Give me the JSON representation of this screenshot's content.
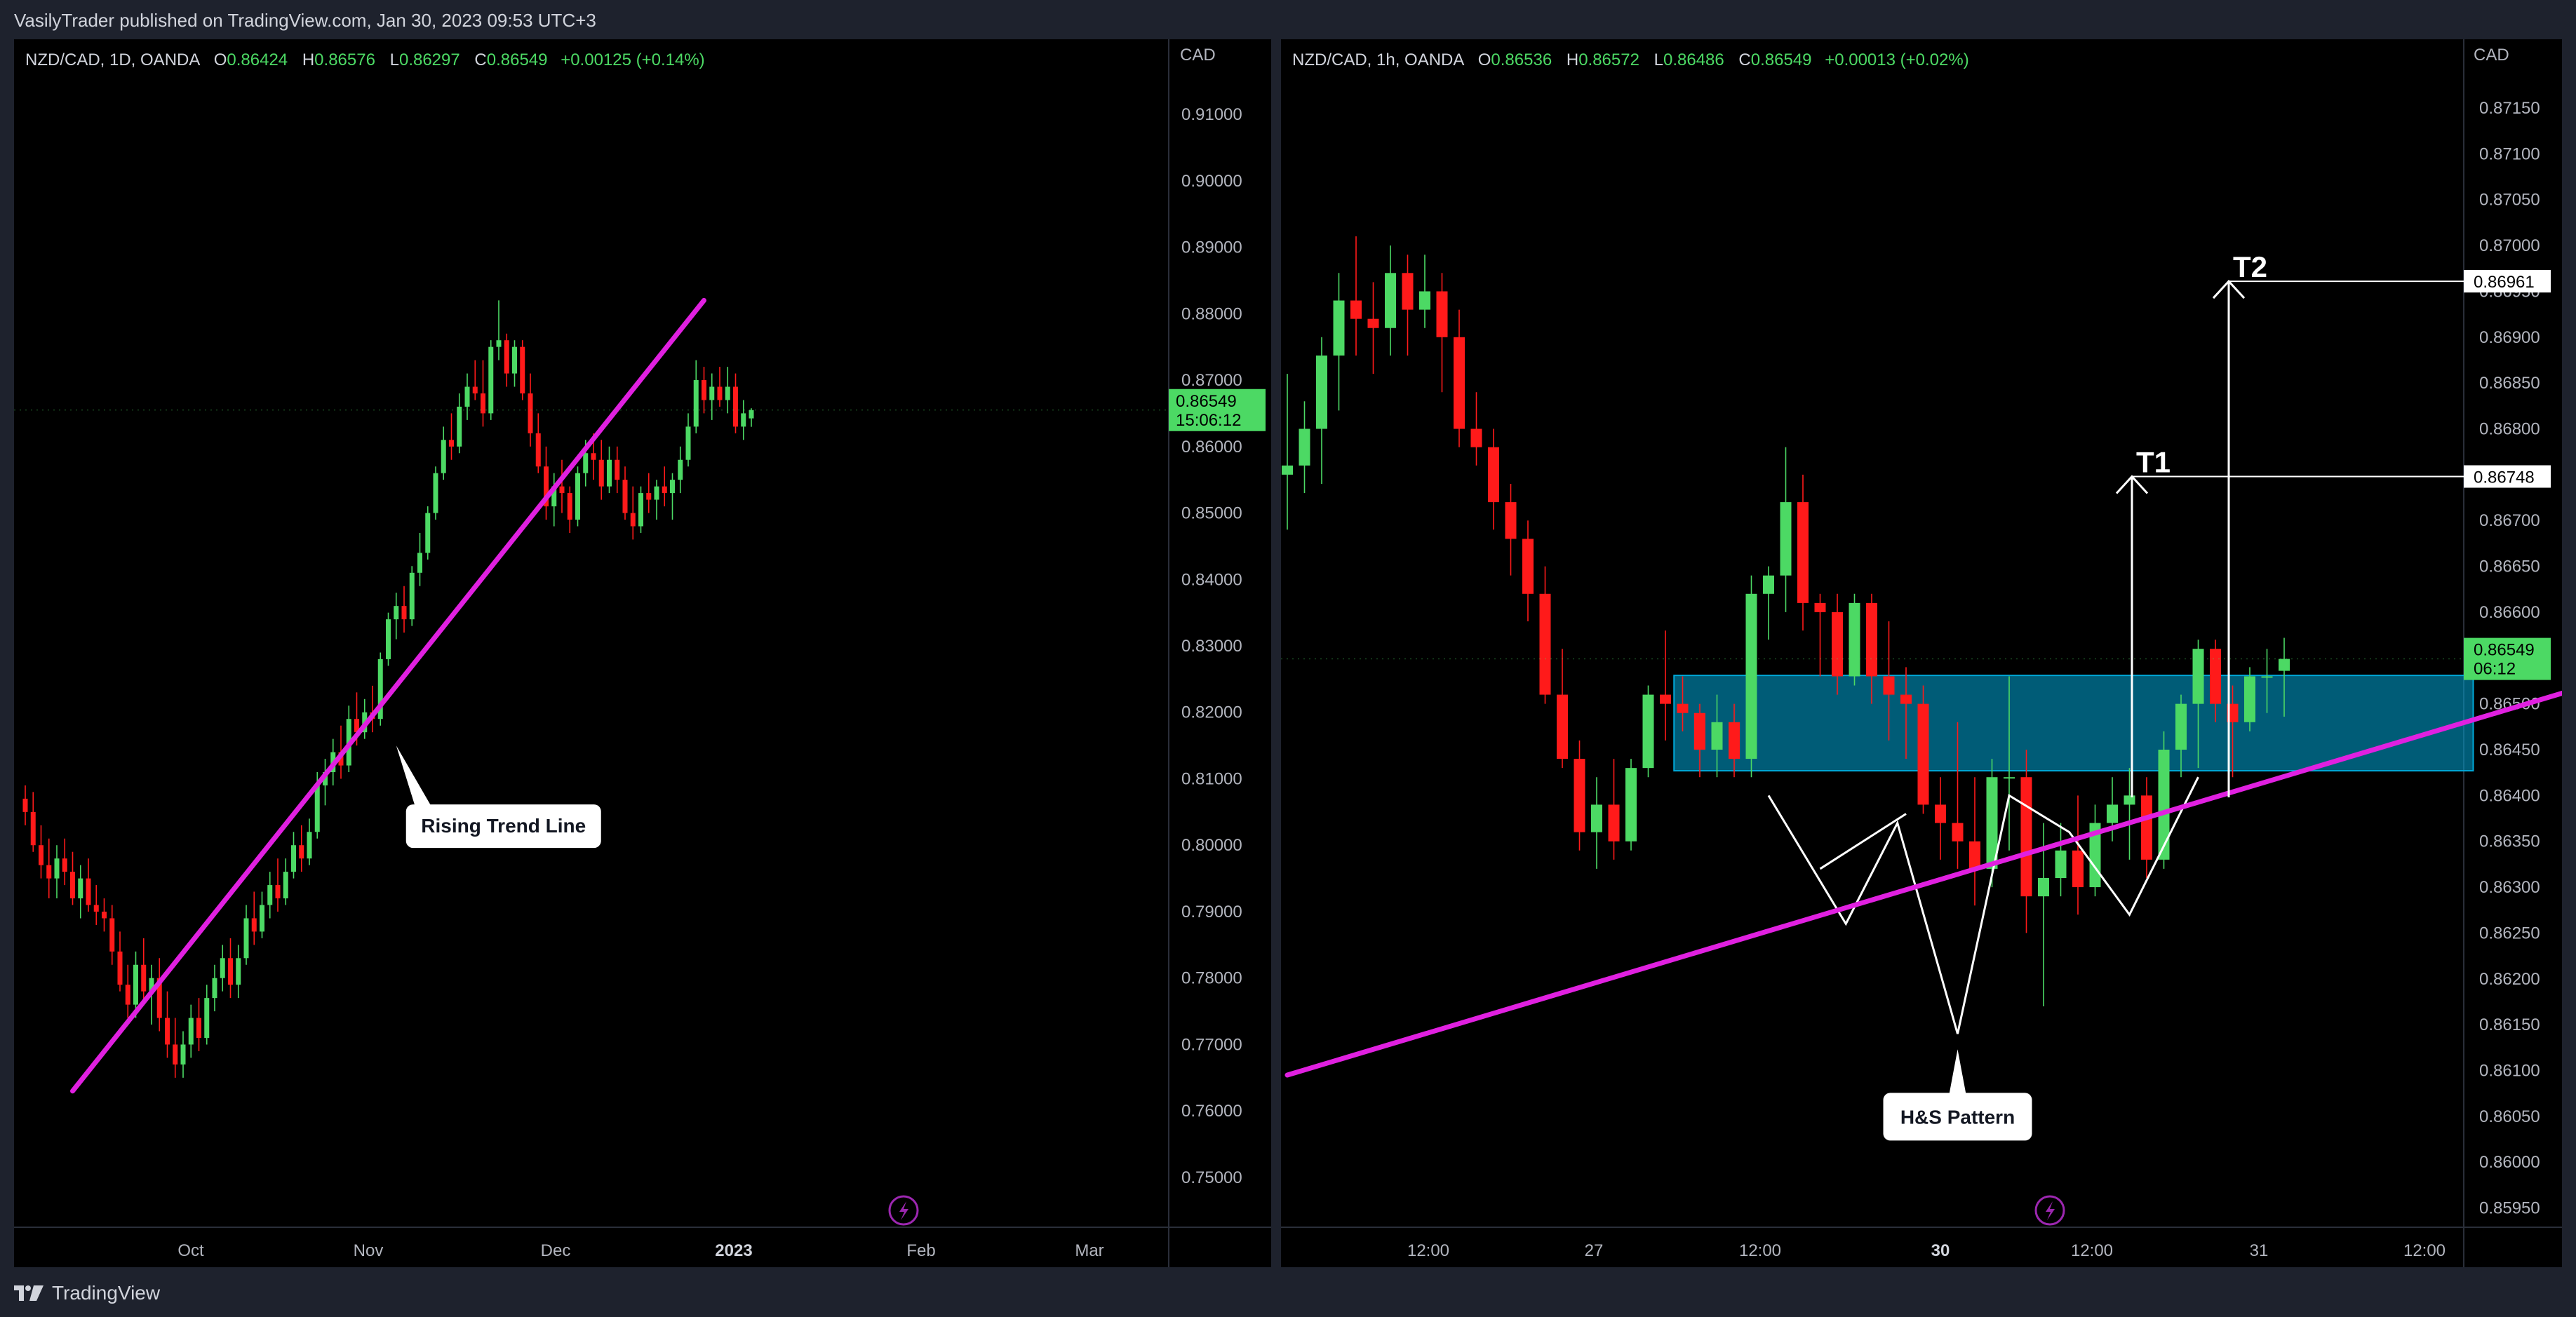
{
  "header": {
    "publisher_line": "VasilyTrader published on TradingView.com, Jan 30, 2023 09:53 UTC+3"
  },
  "footer": {
    "brand": "TradingView"
  },
  "colors": {
    "up": "#4cd964",
    "down": "#ff1a1a",
    "trendline": "#e020e0",
    "zone": "#00a8d8",
    "price_tag": "#4cd964",
    "axis_text": "#b2b5be"
  },
  "chart_data": [
    {
      "type": "candlestick",
      "title": "NZD/CAD, 1D, OANDA",
      "ohlc": {
        "o_label": "O",
        "o": "0.86424",
        "h_label": "H",
        "h": "0.86576",
        "l_label": "L",
        "l": "0.86297",
        "c_label": "C",
        "c": "0.86549",
        "change": "+0.00125 (+0.14%)"
      },
      "currency": "CAD",
      "ylim": [
        0.7425,
        0.9213
      ],
      "y_ticks": [
        "0.91000",
        "0.90000",
        "0.89000",
        "0.88000",
        "0.87000",
        "0.86000",
        "0.85000",
        "0.84000",
        "0.83000",
        "0.82000",
        "0.81000",
        "0.80000",
        "0.79000",
        "0.78000",
        "0.77000",
        "0.76000",
        "0.75000"
      ],
      "x_ticks": [
        "Oct",
        "Nov",
        "Dec",
        "2023",
        "Feb",
        "Mar"
      ],
      "last_price": "0.86549",
      "countdown": "15:06:12",
      "trendline": {
        "from": [
          6,
          0.763
        ],
        "to": [
          86,
          0.882
        ]
      },
      "annotations": [
        {
          "text": "Rising Trend Line",
          "anchor": [
            47,
            0.815
          ]
        }
      ],
      "candles": [
        [
          0.807,
          0.809,
          0.803,
          0.805
        ],
        [
          0.805,
          0.808,
          0.799,
          0.8
        ],
        [
          0.8,
          0.803,
          0.795,
          0.797
        ],
        [
          0.797,
          0.801,
          0.792,
          0.795
        ],
        [
          0.795,
          0.8,
          0.792,
          0.798
        ],
        [
          0.798,
          0.801,
          0.794,
          0.796
        ],
        [
          0.796,
          0.799,
          0.791,
          0.792
        ],
        [
          0.792,
          0.797,
          0.789,
          0.795
        ],
        [
          0.795,
          0.798,
          0.79,
          0.791
        ],
        [
          0.791,
          0.794,
          0.788,
          0.79
        ],
        [
          0.79,
          0.792,
          0.787,
          0.789
        ],
        [
          0.789,
          0.791,
          0.782,
          0.784
        ],
        [
          0.784,
          0.787,
          0.778,
          0.779
        ],
        [
          0.779,
          0.782,
          0.774,
          0.776
        ],
        [
          0.776,
          0.784,
          0.774,
          0.782
        ],
        [
          0.782,
          0.786,
          0.776,
          0.778
        ],
        [
          0.778,
          0.782,
          0.773,
          0.78
        ],
        [
          0.78,
          0.783,
          0.772,
          0.774
        ],
        [
          0.774,
          0.778,
          0.768,
          0.77
        ],
        [
          0.77,
          0.774,
          0.765,
          0.767
        ],
        [
          0.767,
          0.772,
          0.765,
          0.77
        ],
        [
          0.77,
          0.776,
          0.768,
          0.774
        ],
        [
          0.774,
          0.777,
          0.769,
          0.771
        ],
        [
          0.771,
          0.779,
          0.77,
          0.777
        ],
        [
          0.777,
          0.782,
          0.775,
          0.78
        ],
        [
          0.78,
          0.785,
          0.778,
          0.783
        ],
        [
          0.783,
          0.786,
          0.777,
          0.779
        ],
        [
          0.779,
          0.785,
          0.777,
          0.783
        ],
        [
          0.783,
          0.791,
          0.782,
          0.789
        ],
        [
          0.789,
          0.793,
          0.785,
          0.787
        ],
        [
          0.787,
          0.793,
          0.786,
          0.791
        ],
        [
          0.791,
          0.796,
          0.789,
          0.794
        ],
        [
          0.794,
          0.798,
          0.79,
          0.792
        ],
        [
          0.792,
          0.798,
          0.791,
          0.796
        ],
        [
          0.796,
          0.802,
          0.795,
          0.8
        ],
        [
          0.8,
          0.803,
          0.796,
          0.798
        ],
        [
          0.798,
          0.804,
          0.797,
          0.802
        ],
        [
          0.802,
          0.811,
          0.801,
          0.809
        ],
        [
          0.809,
          0.813,
          0.806,
          0.811
        ],
        [
          0.811,
          0.816,
          0.809,
          0.814
        ],
        [
          0.814,
          0.818,
          0.81,
          0.812
        ],
        [
          0.812,
          0.821,
          0.811,
          0.819
        ],
        [
          0.819,
          0.823,
          0.815,
          0.817
        ],
        [
          0.817,
          0.822,
          0.816,
          0.82
        ],
        [
          0.82,
          0.824,
          0.817,
          0.819
        ],
        [
          0.819,
          0.829,
          0.818,
          0.828
        ],
        [
          0.828,
          0.835,
          0.827,
          0.834
        ],
        [
          0.834,
          0.838,
          0.831,
          0.836
        ],
        [
          0.836,
          0.839,
          0.832,
          0.834
        ],
        [
          0.834,
          0.842,
          0.833,
          0.841
        ],
        [
          0.841,
          0.847,
          0.839,
          0.844
        ],
        [
          0.844,
          0.851,
          0.843,
          0.85
        ],
        [
          0.85,
          0.857,
          0.849,
          0.856
        ],
        [
          0.856,
          0.863,
          0.855,
          0.861
        ],
        [
          0.861,
          0.865,
          0.858,
          0.86
        ],
        [
          0.86,
          0.868,
          0.859,
          0.866
        ],
        [
          0.866,
          0.871,
          0.864,
          0.869
        ],
        [
          0.869,
          0.873,
          0.867,
          0.868
        ],
        [
          0.868,
          0.873,
          0.863,
          0.865
        ],
        [
          0.865,
          0.876,
          0.864,
          0.875
        ],
        [
          0.875,
          0.882,
          0.873,
          0.876
        ],
        [
          0.876,
          0.877,
          0.869,
          0.871
        ],
        [
          0.871,
          0.876,
          0.869,
          0.875
        ],
        [
          0.875,
          0.876,
          0.867,
          0.868
        ],
        [
          0.868,
          0.871,
          0.86,
          0.862
        ],
        [
          0.862,
          0.865,
          0.856,
          0.857
        ],
        [
          0.857,
          0.86,
          0.849,
          0.851
        ],
        [
          0.851,
          0.856,
          0.848,
          0.854
        ],
        [
          0.854,
          0.858,
          0.85,
          0.853
        ],
        [
          0.853,
          0.854,
          0.847,
          0.849
        ],
        [
          0.849,
          0.857,
          0.848,
          0.856
        ],
        [
          0.856,
          0.861,
          0.854,
          0.859
        ],
        [
          0.859,
          0.862,
          0.855,
          0.858
        ],
        [
          0.858,
          0.861,
          0.852,
          0.854
        ],
        [
          0.854,
          0.86,
          0.853,
          0.858
        ],
        [
          0.858,
          0.86,
          0.853,
          0.855
        ],
        [
          0.855,
          0.857,
          0.849,
          0.85
        ],
        [
          0.85,
          0.854,
          0.846,
          0.848
        ],
        [
          0.848,
          0.854,
          0.847,
          0.853
        ],
        [
          0.853,
          0.856,
          0.85,
          0.852
        ],
        [
          0.852,
          0.855,
          0.849,
          0.854
        ],
        [
          0.854,
          0.857,
          0.851,
          0.853
        ],
        [
          0.853,
          0.856,
          0.849,
          0.855
        ],
        [
          0.855,
          0.86,
          0.853,
          0.858
        ],
        [
          0.858,
          0.865,
          0.857,
          0.863
        ],
        [
          0.863,
          0.873,
          0.862,
          0.87
        ],
        [
          0.87,
          0.872,
          0.865,
          0.867
        ],
        [
          0.867,
          0.871,
          0.864,
          0.869
        ],
        [
          0.869,
          0.872,
          0.866,
          0.867
        ],
        [
          0.867,
          0.872,
          0.865,
          0.869
        ],
        [
          0.869,
          0.871,
          0.862,
          0.863
        ],
        [
          0.863,
          0.867,
          0.861,
          0.865
        ],
        [
          0.86424,
          0.86576,
          0.86297,
          0.86549
        ]
      ]
    },
    {
      "type": "candlestick",
      "title": "NZD/CAD, 1h, OANDA",
      "ohlc": {
        "o_label": "O",
        "o": "0.86536",
        "h_label": "H",
        "h": "0.86572",
        "l_label": "L",
        "l": "0.86486",
        "c_label": "C",
        "c": "0.86549",
        "change": "+0.00013 (+0.02%)"
      },
      "currency": "CAD",
      "ylim": [
        0.85929,
        0.87225
      ],
      "y_ticks": [
        "0.87150",
        "0.87100",
        "0.87050",
        "0.87000",
        "0.86950",
        "0.86900",
        "0.86850",
        "0.86800",
        "0.86750",
        "0.86700",
        "0.86650",
        "0.86600",
        "0.86550",
        "0.86500",
        "0.86450",
        "0.86400",
        "0.86350",
        "0.86300",
        "0.86250",
        "0.86200",
        "0.86150",
        "0.86100",
        "0.86050",
        "0.86000",
        "0.85950"
      ],
      "x_ticks": [
        "12:00",
        "27",
        "12:00",
        "30",
        "12:00",
        "31",
        "12:00"
      ],
      "last_price": "0.86549",
      "countdown": "06:12",
      "zone": {
        "top": 0.86531,
        "bottom": 0.86427,
        "x_from": 22.5,
        "x_to": 69
      },
      "trendline": {
        "from": [
          0,
          0.86095
        ],
        "to": [
          83.5,
          0.86564
        ]
      },
      "targets": [
        {
          "label": "T1",
          "price": "0.86748",
          "value": 0.86748
        },
        {
          "label": "T2",
          "price": "0.86961",
          "value": 0.86961
        }
      ],
      "annotations": [
        {
          "text": "H&S Pattern",
          "anchor": [
            39,
            0.86123
          ]
        }
      ],
      "candles": [
        [
          0.8675,
          0.8686,
          0.8669,
          0.8676
        ],
        [
          0.8676,
          0.8683,
          0.8673,
          0.868
        ],
        [
          0.868,
          0.869,
          0.8674,
          0.8688
        ],
        [
          0.8688,
          0.8697,
          0.8682,
          0.8694
        ],
        [
          0.8694,
          0.8701,
          0.8688,
          0.8692
        ],
        [
          0.8692,
          0.8696,
          0.8686,
          0.8691
        ],
        [
          0.8691,
          0.87,
          0.8688,
          0.8697
        ],
        [
          0.8697,
          0.8699,
          0.8688,
          0.8693
        ],
        [
          0.8693,
          0.8699,
          0.8691,
          0.8695
        ],
        [
          0.8695,
          0.8697,
          0.8684,
          0.869
        ],
        [
          0.869,
          0.8693,
          0.8678,
          0.868
        ],
        [
          0.868,
          0.8684,
          0.8676,
          0.8678
        ],
        [
          0.8678,
          0.868,
          0.8669,
          0.8672
        ],
        [
          0.8672,
          0.8674,
          0.8664,
          0.8668
        ],
        [
          0.8668,
          0.867,
          0.8659,
          0.8662
        ],
        [
          0.8662,
          0.8665,
          0.865,
          0.8651
        ],
        [
          0.8651,
          0.8656,
          0.8643,
          0.8644
        ],
        [
          0.8644,
          0.8646,
          0.8634,
          0.8636
        ],
        [
          0.8636,
          0.8642,
          0.8632,
          0.8639
        ],
        [
          0.8639,
          0.8644,
          0.8633,
          0.8635
        ],
        [
          0.8635,
          0.8644,
          0.8634,
          0.8643
        ],
        [
          0.8643,
          0.8652,
          0.8642,
          0.8651
        ],
        [
          0.8651,
          0.8658,
          0.8646,
          0.865
        ],
        [
          0.865,
          0.8653,
          0.8647,
          0.8649
        ],
        [
          0.8649,
          0.865,
          0.8642,
          0.8645
        ],
        [
          0.8645,
          0.8651,
          0.8642,
          0.8648
        ],
        [
          0.8648,
          0.865,
          0.8642,
          0.8644
        ],
        [
          0.8644,
          0.8664,
          0.8642,
          0.8662
        ],
        [
          0.8662,
          0.8665,
          0.8657,
          0.8664
        ],
        [
          0.8664,
          0.8678,
          0.866,
          0.8672
        ],
        [
          0.8672,
          0.8675,
          0.8658,
          0.8661
        ],
        [
          0.8661,
          0.8662,
          0.8653,
          0.866
        ],
        [
          0.866,
          0.8662,
          0.8651,
          0.8653
        ],
        [
          0.8653,
          0.8662,
          0.8652,
          0.8661
        ],
        [
          0.8661,
          0.8662,
          0.865,
          0.8653
        ],
        [
          0.8653,
          0.8659,
          0.8646,
          0.8651
        ],
        [
          0.8651,
          0.8654,
          0.8644,
          0.865
        ],
        [
          0.865,
          0.8652,
          0.8638,
          0.8639
        ],
        [
          0.8639,
          0.8642,
          0.8633,
          0.8637
        ],
        [
          0.8637,
          0.8648,
          0.8632,
          0.8635
        ],
        [
          0.8635,
          0.8642,
          0.8628,
          0.8632
        ],
        [
          0.8632,
          0.8644,
          0.863,
          0.8642
        ],
        [
          0.8642,
          0.8653,
          0.8634,
          0.8642
        ],
        [
          0.8642,
          0.8645,
          0.8625,
          0.8629
        ],
        [
          0.8629,
          0.8637,
          0.8617,
          0.8631
        ],
        [
          0.8631,
          0.8637,
          0.8629,
          0.8634
        ],
        [
          0.8634,
          0.864,
          0.8627,
          0.863
        ],
        [
          0.863,
          0.8639,
          0.8629,
          0.8637
        ],
        [
          0.8637,
          0.8642,
          0.8635,
          0.8639
        ],
        [
          0.8639,
          0.8643,
          0.8633,
          0.864
        ],
        [
          0.864,
          0.8642,
          0.8631,
          0.8633
        ],
        [
          0.8633,
          0.8647,
          0.8632,
          0.8645
        ],
        [
          0.8645,
          0.8651,
          0.8642,
          0.865
        ],
        [
          0.865,
          0.8657,
          0.8643,
          0.8656
        ],
        [
          0.8656,
          0.8657,
          0.8648,
          0.865
        ],
        [
          0.865,
          0.8652,
          0.8642,
          0.8648
        ],
        [
          0.8648,
          0.8654,
          0.8647,
          0.8653
        ],
        [
          0.8653,
          0.8656,
          0.8649,
          0.8653
        ],
        [
          0.86536,
          0.86572,
          0.86486,
          0.86549
        ]
      ]
    }
  ]
}
